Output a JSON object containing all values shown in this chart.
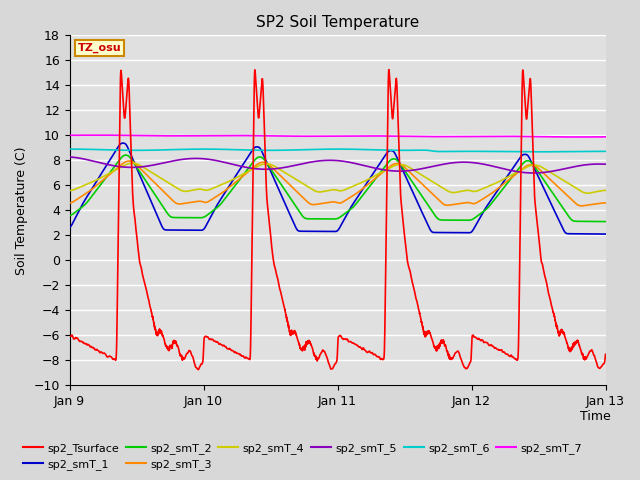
{
  "title": "SP2 Soil Temperature",
  "xlabel": "Time",
  "ylabel": "Soil Temperature (C)",
  "ylim": [
    -10,
    18
  ],
  "xlim": [
    0,
    4.0
  ],
  "yticks": [
    -10,
    -8,
    -6,
    -4,
    -2,
    0,
    2,
    4,
    6,
    8,
    10,
    12,
    14,
    16,
    18
  ],
  "xtick_labels": [
    "Jan 9",
    "Jan 10",
    "Jan 11",
    "Jan 12",
    "Jan 13"
  ],
  "xtick_positions": [
    0,
    1,
    2,
    3,
    4
  ],
  "bg_color": "#e0e0e0",
  "grid_color": "#ffffff",
  "annotation_text": "TZ_osu",
  "annotation_bg": "#ffffcc",
  "annotation_border": "#cc8800",
  "annotation_text_color": "#cc0000",
  "colors": {
    "sp2_Tsurface": "#ff0000",
    "sp2_smT_1": "#0000cc",
    "sp2_smT_2": "#00cc00",
    "sp2_smT_3": "#ff8800",
    "sp2_smT_4": "#cccc00",
    "sp2_smT_5": "#8800bb",
    "sp2_smT_6": "#00cccc",
    "sp2_smT_7": "#ff00ff"
  },
  "legend_items": [
    {
      "label": "sp2_Tsurface",
      "color": "#ff0000"
    },
    {
      "label": "sp2_smT_1",
      "color": "#0000cc"
    },
    {
      "label": "sp2_smT_2",
      "color": "#00cc00"
    },
    {
      "label": "sp2_smT_3",
      "color": "#ff8800"
    },
    {
      "label": "sp2_smT_4",
      "color": "#cccc00"
    },
    {
      "label": "sp2_smT_5",
      "color": "#8800bb"
    },
    {
      "label": "sp2_smT_6",
      "color": "#00cccc"
    },
    {
      "label": "sp2_smT_7",
      "color": "#ff00ff"
    }
  ]
}
